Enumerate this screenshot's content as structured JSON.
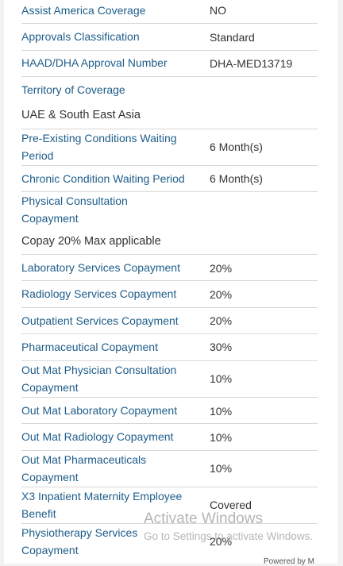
{
  "rows": [
    {
      "label": "Assist America Coverage",
      "value": "NO"
    },
    {
      "label": "Approvals Classification",
      "value": "Standard"
    },
    {
      "label": "HAAD/DHA Approval Number",
      "value": "DHA-MED13719"
    },
    {
      "label": "Territory of Coverage",
      "value": "UAE & South East Asia"
    },
    {
      "label": "Pre-Existing Conditions Waiting Period",
      "value": "6 Month(s)"
    },
    {
      "label": "Chronic Condition Waiting Period",
      "value": "6 Month(s)"
    },
    {
      "label": "Physical Consultation Copayment",
      "value": "Copay 20% Max applicable"
    },
    {
      "label": "Laboratory Services Copayment",
      "value": "20%"
    },
    {
      "label": "Radiology Services Copayment",
      "value": "20%"
    },
    {
      "label": "Outpatient Services Copayment",
      "value": "20%"
    },
    {
      "label": "Pharmaceutical Copayment",
      "value": "30%"
    },
    {
      "label": "Out Mat Physician Consultation Copayment",
      "value": "10%"
    },
    {
      "label": "Out Mat Laboratory Copayment",
      "value": "10%"
    },
    {
      "label": "Out Mat Radiology Copayment",
      "value": "10%"
    },
    {
      "label": "Out Mat Pharmaceuticals Copayment",
      "value": "10%"
    },
    {
      "label": "X3 Inpatient Maternity Employee Benefit",
      "value": "Covered"
    },
    {
      "label": "Physiotherapy Services Copayment",
      "value": "20%"
    }
  ],
  "watermark": {
    "title": "Activate Windows",
    "subtitle": "Go to Settings to activate Windows."
  },
  "bottom_partial_text": "Powered by M"
}
